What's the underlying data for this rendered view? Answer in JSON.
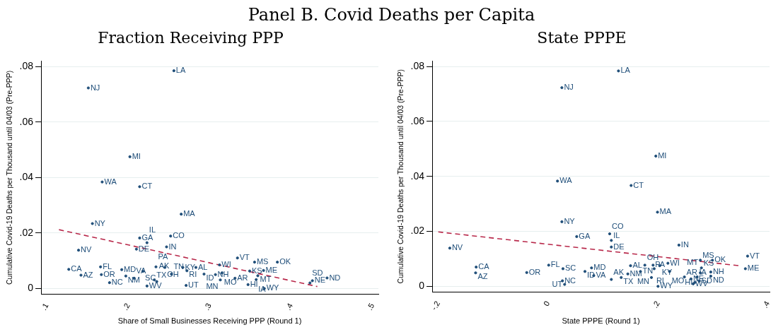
{
  "chart_data": [
    {
      "type": "scatter",
      "title": "Fraction Receiving PPP",
      "annotations": [
        "Panel B. Covid Deaths per Capita"
      ],
      "xlabel": "Share of Small Businesses Receiving PPP (Round 1)",
      "ylabel": "Cumulative Covid-19 Deaths per Thousand until 04/03 (Pre-PPP)",
      "xlim": [
        0.093,
        0.507
      ],
      "ylim": [
        -0.002,
        0.082
      ],
      "xticks": [
        {
          "value": 0.1,
          "label": ".1"
        },
        {
          "value": 0.2,
          "label": ".2"
        },
        {
          "value": 0.3,
          "label": ".3"
        },
        {
          "value": 0.4,
          "label": ".4"
        },
        {
          "value": 0.5,
          "label": ".5"
        }
      ],
      "yticks": [
        0,
        {
          "value": 0.02,
          "label": ".02"
        },
        {
          "value": 0.04,
          "label": ".04"
        },
        {
          "value": 0.06,
          "label": ".06"
        },
        {
          "value": 0.08,
          "label": ".08"
        }
      ],
      "grid": "y",
      "legend": false,
      "series": [
        {
          "marker": "circle",
          "color": "#1f4e79",
          "x": [
            0.127,
            0.142,
            0.166,
            0.167,
            0.177,
            0.192,
            0.197,
            0.207,
            0.218,
            0.223,
            0.232,
            0.235,
            0.234,
            0.245,
            0.253,
            0.267,
            0.272,
            0.283,
            0.271,
            0.293,
            0.307,
            0.312,
            0.315,
            0.313,
            0.331,
            0.334,
            0.349,
            0.355,
            0.366,
            0.359,
            0.357,
            0.347,
            0.367,
            0.383,
            0.426,
            0.423,
            0.444,
            0.139,
            0.21,
            0.214,
            0.223,
            0.247,
            0.252,
            0.265,
            0.156,
            0.214,
            0.168,
            0.202,
            0.151,
            0.256
          ],
          "values": [
            0.0069,
            0.0048,
            0.0078,
            0.005,
            0.0021,
            0.0068,
            0.0045,
            0.0037,
            0.0062,
            0.0009,
            0.0031,
            0.0025,
            0.0078,
            0.0076,
            0.0052,
            0.0076,
            0.0064,
            0.0076,
            0.0011,
            0.0052,
            0.005,
            0.0085,
            0.0056,
            0.0031,
            0.0037,
            0.011,
            0.0063,
            0.0095,
            0.0065,
            0.0046,
            0.0032,
            0.0014,
            0,
            0.0095,
            0.0028,
            0.002,
            0.0038,
            0.0138,
            0.0142,
            0.0182,
            0.0165,
            0.015,
            0.0189,
            0.0268,
            0.0234,
            0.0367,
            0.0384,
            0.0475,
            0.0723,
            0.0785
          ],
          "value_labels": [
            "CA",
            "AZ",
            "FL",
            "OR",
            "NC",
            "MD",
            "NM",
            "VA",
            "SC",
            "WV",
            "TX",
            "AK",
            "PA",
            "OH",
            "TN",
            "KY",
            "RI",
            "AL",
            "UT",
            "ID",
            "NH",
            "WI",
            "MO",
            "MN",
            "AR",
            "VT",
            "KS",
            "MS",
            "ME",
            "MT",
            "IA",
            "HI",
            "WY",
            "OK",
            "NE",
            "SD",
            "ND",
            "NV",
            "DE",
            "GA",
            "IL",
            "IN",
            "CO",
            "MA",
            "NY",
            "CT",
            "WA",
            "MI",
            "NJ",
            "LA"
          ]
        },
        {
          "type": "line",
          "line_style": "dashed",
          "color": "#b8284a",
          "x": [
            0.115,
            0.432
          ],
          "values": [
            0.0212,
            0.0007
          ]
        }
      ]
    },
    {
      "type": "scatter",
      "title": "State PPPE",
      "xlabel": "State PPPE (Round 1)",
      "ylabel": "Cumulative Covid-19 Deaths per Thousand until 04/03 (Pre-PPP)",
      "xlim": [
        -0.211,
        0.403
      ],
      "ylim": [
        -0.002,
        0.082
      ],
      "xticks": [
        {
          "value": -0.2,
          "label": "-.2"
        },
        0,
        {
          "value": 0.2,
          "label": ".2"
        },
        {
          "value": 0.4,
          "label": ".4"
        }
      ],
      "yticks": [
        0,
        {
          "value": 0.02,
          "label": ".02"
        },
        {
          "value": 0.04,
          "label": ".04"
        },
        {
          "value": 0.06,
          "label": ".06"
        },
        {
          "value": 0.08,
          "label": ".08"
        }
      ],
      "grid": "y",
      "legend": false,
      "series": [
        {
          "marker": "circle",
          "color": "#1f4e79",
          "x": [
            -0.131,
            -0.132,
            0.001,
            -0.039,
            0.026,
            0.079,
            0.145,
            0.083,
            0.027,
            0.264,
            0.133,
            0.115,
            0.191,
            0.176,
            0.168,
            0.203,
            0.193,
            0.15,
            0.03,
            0.067,
            0.296,
            0.218,
            0.221,
            0.188,
            0.248,
            0.363,
            0.279,
            0.277,
            0.359,
            0.277,
            0.271,
            0.267,
            0.2,
            0.299,
            0.26,
            0.275,
            0.296,
            -0.179,
            0.115,
            0.052,
            0.115,
            0.238,
            0.112,
            0.199,
            0.025,
            0.151,
            0.017,
            0.196,
            0.025,
            0.128
          ],
          "values": [
            0.007,
            0.0049,
            0.0077,
            0.005,
            0.002,
            0.0067,
            0.0045,
            0.0039,
            0.0064,
            0.0009,
            0.0032,
            0.0025,
            0.0077,
            0.0077,
            0.0054,
            0.0075,
            0.0064,
            0.0075,
            0.0007,
            0.0054,
            0.0052,
            0.0084,
            0.0054,
            0.0032,
            0.0034,
            0.011,
            0.0067,
            0.0095,
            0.0064,
            0.0049,
            0.0034,
            0.0014,
            0,
            0.0095,
            0.0027,
            0.0019,
            0.0037,
            0.0139,
            0.0143,
            0.0181,
            0.0167,
            0.015,
            0.0191,
            0.027,
            0.0235,
            0.0367,
            0.0383,
            0.0474,
            0.0723,
            0.0784
          ],
          "value_labels": [
            "CA",
            "AZ",
            "FL",
            "OR",
            "NC",
            "MD",
            "NM",
            "VA",
            "SC",
            "WV",
            "TX",
            "AK",
            "PA",
            "OH",
            "TN",
            "KY",
            "RI",
            "AL",
            "UT",
            "ID",
            "NH",
            "WI",
            "MO",
            "MN",
            "AR",
            "VT",
            "KS",
            "MS",
            "ME",
            "MT",
            "IA",
            "HI",
            "WY",
            "OK",
            "NE",
            "SD",
            "ND",
            "NV",
            "DE",
            "GA",
            "IL",
            "IN",
            "CO",
            "MA",
            "NY",
            "CT",
            "WA",
            "MI",
            "NJ",
            "LA"
          ]
        },
        {
          "type": "line",
          "line_style": "dashed",
          "color": "#b8284a",
          "x": [
            -0.2,
            0.347
          ],
          "values": [
            0.0198,
            0.0075
          ]
        }
      ]
    }
  ]
}
